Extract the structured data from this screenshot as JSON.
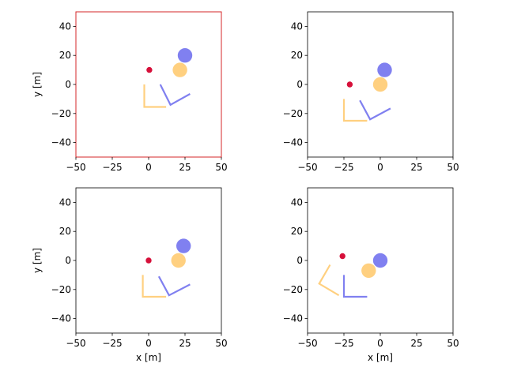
{
  "chart_data": [
    {
      "type": "scatter",
      "panel": "top-left",
      "highlighted": true,
      "frame_color": "#d62728",
      "xlabel": "",
      "ylabel": "y [m]",
      "xlim": [
        -50,
        50
      ],
      "ylim": [
        -50,
        50
      ],
      "xticks": [
        "−50",
        "−25",
        "0",
        "25",
        "50"
      ],
      "yticks": [
        "−40",
        "−20",
        "0",
        "20",
        "40"
      ],
      "grid": false,
      "circles": [
        {
          "x": 25,
          "y": 20,
          "r": 5,
          "color": "#8080f0"
        },
        {
          "x": 21.5,
          "y": 10,
          "r": 5,
          "color": "#ffd080"
        },
        {
          "x": 0.5,
          "y": 10,
          "r": 2,
          "color": "#d6103a"
        }
      ],
      "polylines": [
        {
          "points": [
            [
              -3,
              0
            ],
            [
              -3,
              -15.5
            ],
            [
              12,
              -15.5
            ]
          ],
          "color": "#ffd080"
        },
        {
          "points": [
            [
              8,
              0
            ],
            [
              15,
              -14
            ],
            [
              28.5,
              -6.5
            ]
          ],
          "color": "#8080f0"
        }
      ]
    },
    {
      "type": "scatter",
      "panel": "top-right",
      "highlighted": false,
      "xlabel": "",
      "ylabel": "",
      "xlim": [
        -50,
        50
      ],
      "ylim": [
        -50,
        50
      ],
      "xticks": [
        "−50",
        "−25",
        "0",
        "25",
        "50"
      ],
      "yticks": [
        "−40",
        "−20",
        "0",
        "20",
        "40"
      ],
      "grid": false,
      "circles": [
        {
          "x": 3,
          "y": 10,
          "r": 5,
          "color": "#8080f0"
        },
        {
          "x": 0,
          "y": 0,
          "r": 5,
          "color": "#ffd080"
        },
        {
          "x": -21,
          "y": 0,
          "r": 2,
          "color": "#d6103a"
        }
      ],
      "polylines": [
        {
          "points": [
            [
              -25,
              -10
            ],
            [
              -25,
              -25
            ],
            [
              -9,
              -25
            ]
          ],
          "color": "#ffd080"
        },
        {
          "points": [
            [
              -14,
              -11
            ],
            [
              -7,
              -24
            ],
            [
              7,
              -16.5
            ]
          ],
          "color": "#8080f0"
        }
      ]
    },
    {
      "type": "scatter",
      "panel": "bottom-left",
      "highlighted": false,
      "xlabel": "x [m]",
      "ylabel": "y [m]",
      "xlim": [
        -50,
        50
      ],
      "ylim": [
        -50,
        50
      ],
      "xticks": [
        "−50",
        "−25",
        "0",
        "25",
        "50"
      ],
      "yticks": [
        "−40",
        "−20",
        "0",
        "20",
        "40"
      ],
      "grid": false,
      "circles": [
        {
          "x": 24,
          "y": 10,
          "r": 5,
          "color": "#8080f0"
        },
        {
          "x": 20.5,
          "y": 0,
          "r": 5,
          "color": "#ffd080"
        },
        {
          "x": 0,
          "y": 0,
          "r": 2,
          "color": "#d6103a"
        }
      ],
      "polylines": [
        {
          "points": [
            [
              -4,
              -10
            ],
            [
              -4,
              -25
            ],
            [
              12,
              -25
            ]
          ],
          "color": "#ffd080"
        },
        {
          "points": [
            [
              7,
              -11
            ],
            [
              14,
              -24
            ],
            [
              28.5,
              -16.5
            ]
          ],
          "color": "#8080f0"
        }
      ]
    },
    {
      "type": "scatter",
      "panel": "bottom-right",
      "highlighted": false,
      "xlabel": "x [m]",
      "ylabel": "",
      "xlim": [
        -50,
        50
      ],
      "ylim": [
        -50,
        50
      ],
      "xticks": [
        "−50",
        "−25",
        "0",
        "25",
        "50"
      ],
      "yticks": [
        "−40",
        "−20",
        "0",
        "20",
        "40"
      ],
      "grid": false,
      "circles": [
        {
          "x": 0,
          "y": 0,
          "r": 5,
          "color": "#8080f0"
        },
        {
          "x": -8,
          "y": -7,
          "r": 5,
          "color": "#ffd080"
        },
        {
          "x": -26,
          "y": 3,
          "r": 2,
          "color": "#d6103a"
        }
      ],
      "polylines": [
        {
          "points": [
            [
              -25,
              -10
            ],
            [
              -25,
              -25
            ],
            [
              -9,
              -25
            ]
          ],
          "color": "#8080f0"
        },
        {
          "points": [
            [
              -34.5,
              -3
            ],
            [
              -42,
              -16
            ],
            [
              -28.5,
              -24
            ]
          ],
          "color": "#ffd080"
        }
      ]
    }
  ]
}
